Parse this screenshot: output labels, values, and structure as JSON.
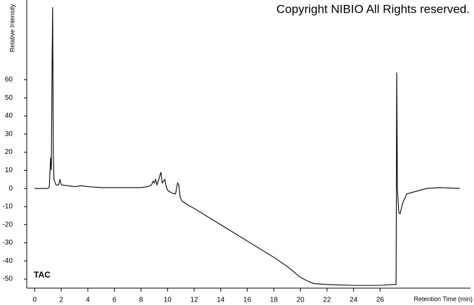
{
  "chart_data": {
    "type": "line",
    "title": "Copyright NIBIO All Rights reserved.",
    "y_label": "Relative Intensity",
    "x_label": "Retention Time (min)",
    "annotation": "TAC",
    "color": "#000000",
    "x": [
      0,
      1.0,
      1.1,
      1.2,
      1.25,
      1.3,
      1.35,
      1.4,
      1.45,
      1.6,
      1.8,
      1.9,
      2.0,
      2.5,
      3,
      3.5,
      4,
      5,
      6,
      7,
      8,
      8.5,
      8.8,
      8.9,
      9.0,
      9.1,
      9.2,
      9.3,
      9.5,
      9.6,
      9.8,
      9.9,
      10.0,
      10.3,
      10.6,
      10.75,
      10.85,
      10.95,
      11.1,
      11.5,
      12,
      14,
      16,
      18,
      19,
      20,
      20.5,
      21,
      22,
      24,
      26,
      27.0,
      27.2,
      27.25,
      27.3,
      27.4,
      27.5,
      27.7,
      28.0,
      28.5,
      29.5,
      30.5,
      32
    ],
    "values": [
      0,
      0,
      1,
      17,
      10,
      60,
      100,
      20,
      5,
      2,
      2,
      5,
      2,
      1.5,
      1,
      1.5,
      1,
      0.5,
      0.5,
      0.5,
      0.5,
      1,
      2,
      4,
      3,
      5,
      2,
      4,
      9,
      3,
      5,
      1,
      -1,
      -2.5,
      -3,
      3,
      2,
      -5,
      -7,
      -9,
      -11,
      -20,
      -29,
      -38,
      -43,
      -49,
      -51,
      -52.5,
      -53,
      -53.5,
      -53.5,
      -53,
      -53,
      64,
      0,
      -13,
      -14,
      -8,
      -3,
      -2,
      0,
      0.5,
      0
    ],
    "xlim": [
      -0.6,
      32.8
    ],
    "ylim": [
      -55,
      104
    ],
    "xticks": [
      0,
      2,
      4,
      6,
      8,
      10,
      12,
      14,
      16,
      18,
      20,
      22,
      24,
      26
    ],
    "yticks": [
      -50,
      -40,
      -30,
      -20,
      -10,
      0,
      10,
      20,
      30,
      40,
      50,
      60
    ]
  }
}
